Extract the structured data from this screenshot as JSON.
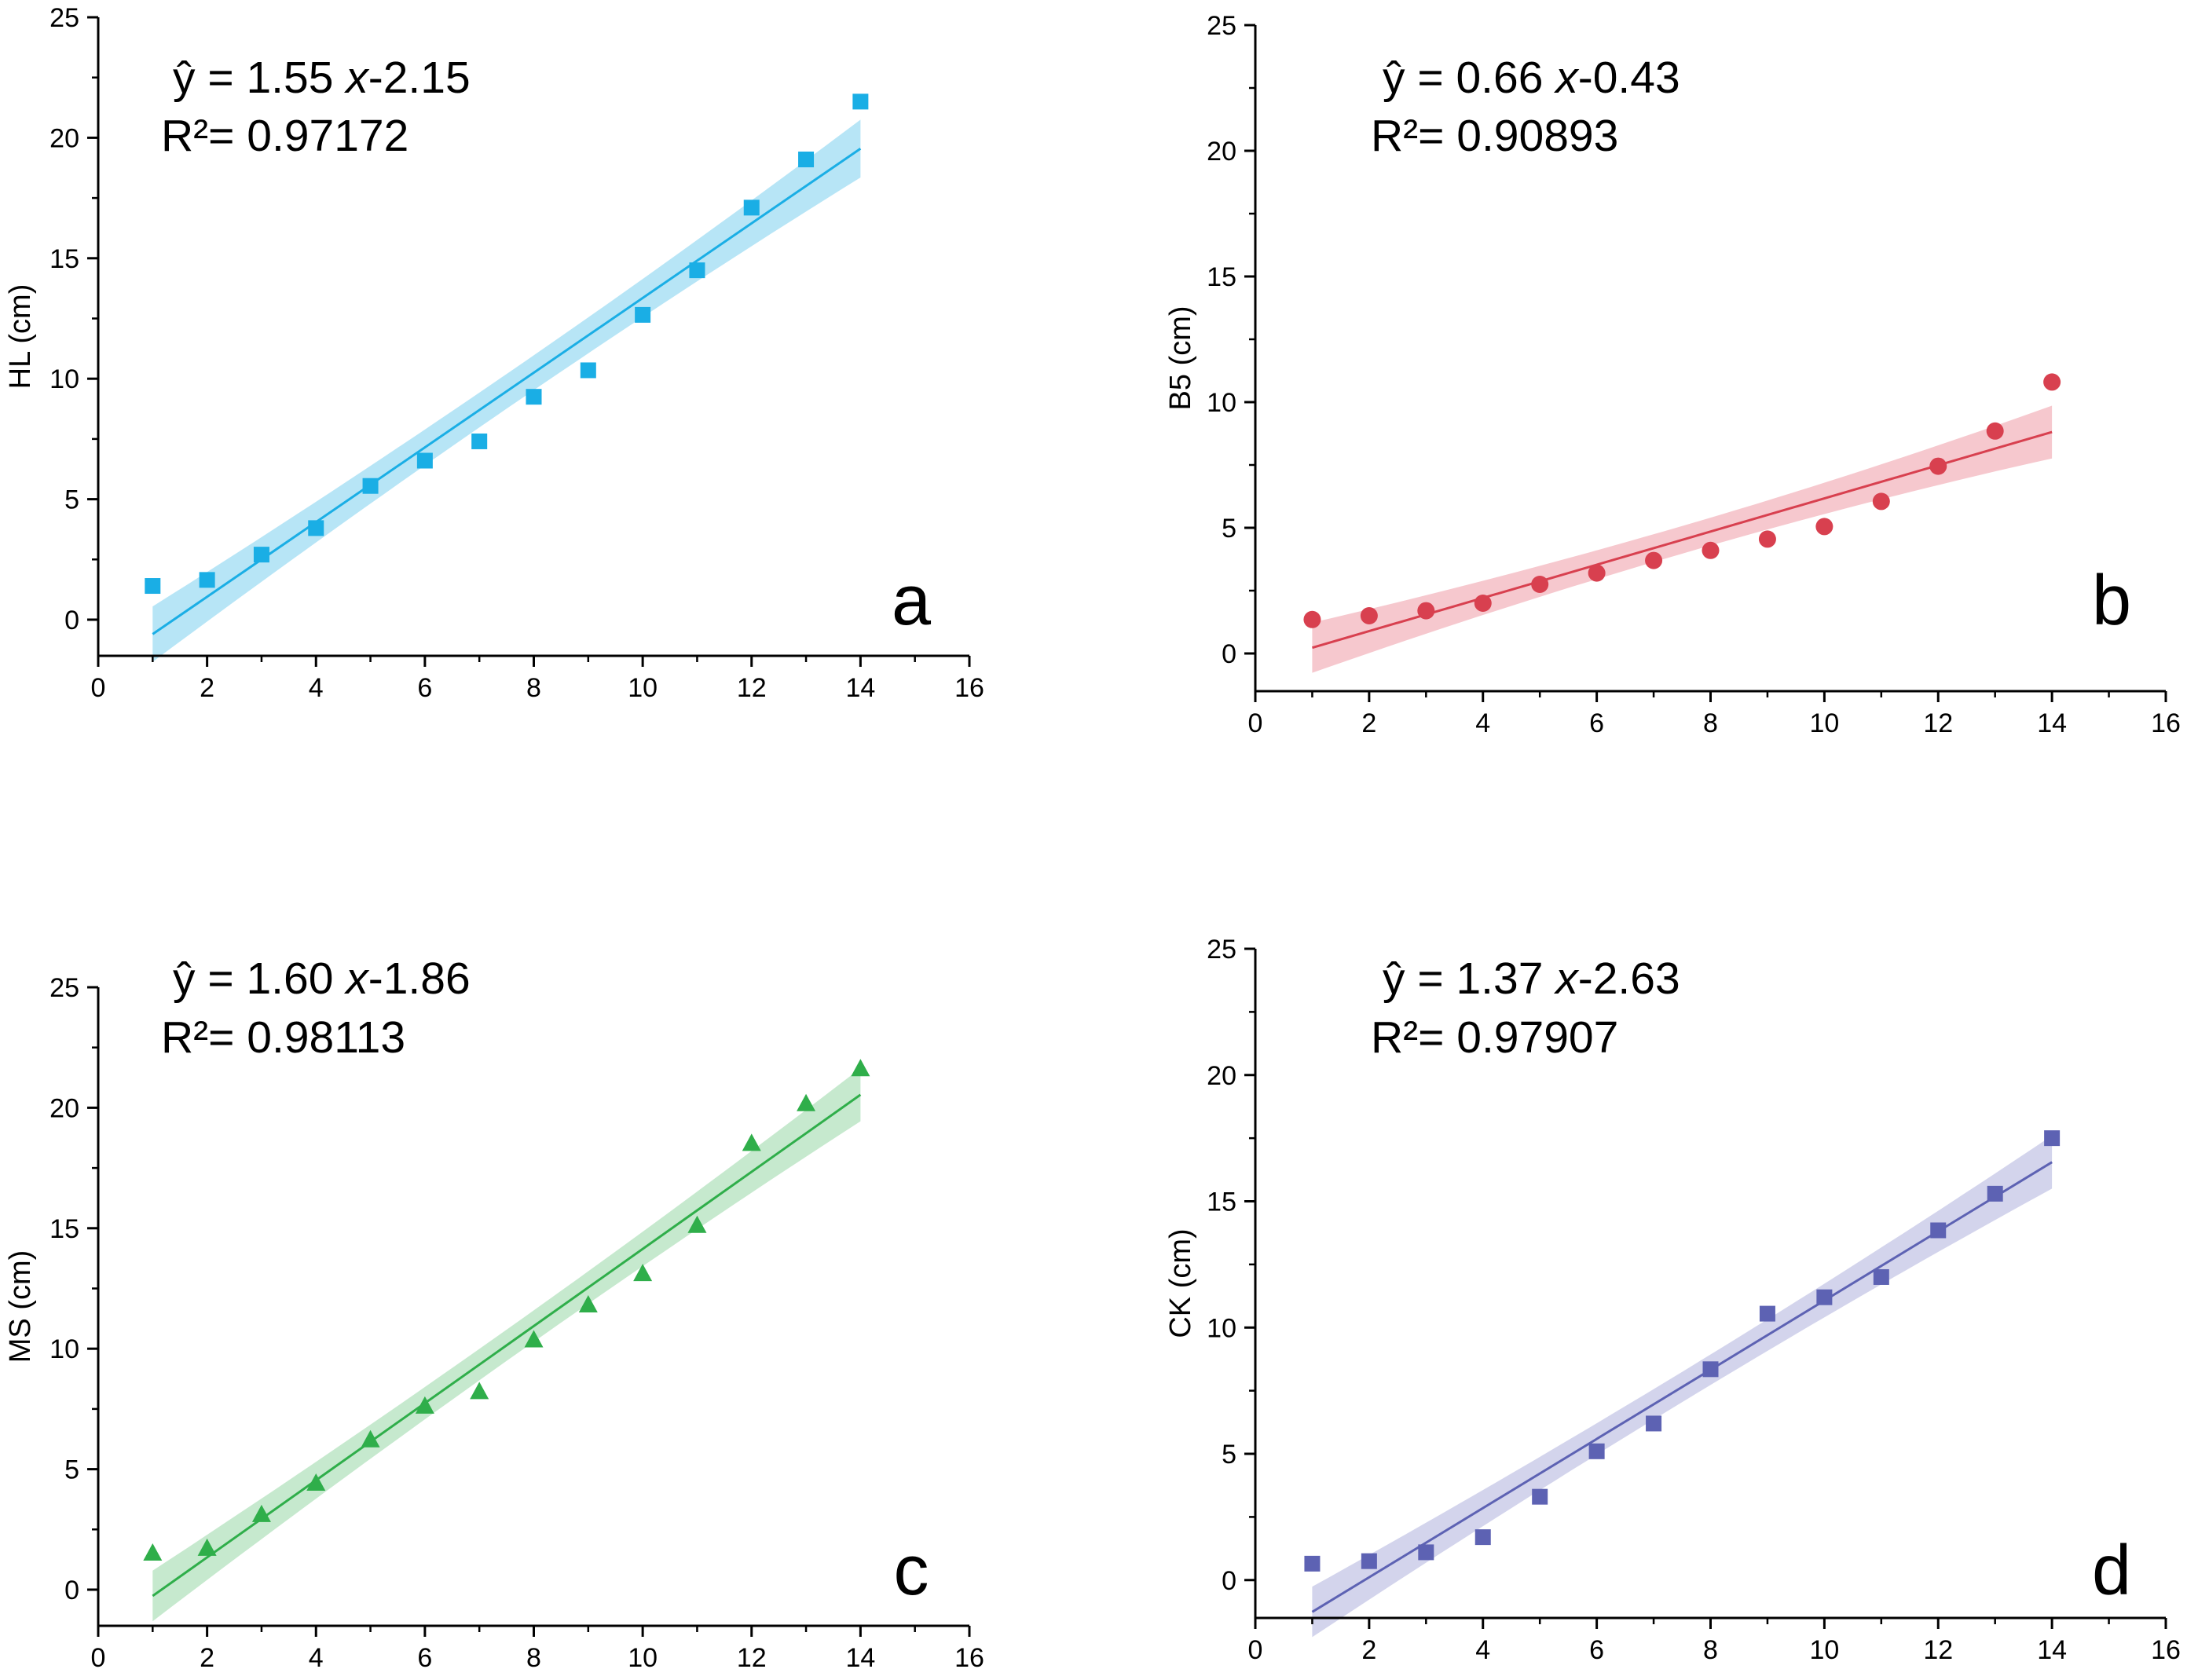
{
  "chart_data": [
    {
      "type": "scatter",
      "panel_label": "a",
      "ylabel": "HL (cm)",
      "xlabel": "",
      "equation": {
        "prefix": "ŷ = 1.55 ",
        "var": "x",
        "suffix": "-2.15"
      },
      "r_squared": "R²= 0.97172",
      "color": "#1aaee5",
      "band_color": "#9fdcf3",
      "marker": "square",
      "xlim": [
        0,
        16
      ],
      "ylim": [
        -1.5,
        25
      ],
      "x_ticks": [
        0,
        2,
        4,
        6,
        8,
        10,
        12,
        14,
        16
      ],
      "y_ticks": [
        0,
        5,
        10,
        15,
        20,
        25
      ],
      "x_tick_labels": [
        "0",
        "2",
        "4",
        "6",
        "8",
        "10",
        "12",
        "14",
        "16"
      ],
      "y_tick_labels": [
        "0",
        "5",
        "10",
        "15",
        "20",
        "25"
      ],
      "x": [
        1,
        2,
        3,
        4,
        5,
        6,
        7,
        8,
        9,
        10,
        11,
        12,
        13,
        14
      ],
      "y": [
        1.4,
        1.65,
        2.7,
        3.8,
        5.55,
        6.6,
        7.4,
        9.25,
        10.35,
        12.65,
        14.5,
        17.1,
        19.1,
        21.5
      ],
      "fit": {
        "slope": 1.55,
        "intercept": -2.15,
        "band": [
          1.15,
          0.72,
          1.2
        ]
      }
    },
    {
      "type": "scatter",
      "panel_label": "b",
      "ylabel": "B5 (cm)",
      "xlabel": "",
      "equation": {
        "prefix": "ŷ = 0.66 ",
        "var": "x",
        "suffix": "-0.43"
      },
      "r_squared": "R²= 0.90893",
      "color": "#d8404f",
      "band_color": "#f3b6bd",
      "marker": "circle",
      "xlim": [
        0,
        16
      ],
      "ylim": [
        -1.5,
        25
      ],
      "x_ticks": [
        0,
        2,
        4,
        6,
        8,
        10,
        12,
        14,
        16
      ],
      "y_ticks": [
        0,
        5,
        10,
        15,
        20,
        25
      ],
      "x_tick_labels": [
        "0",
        "2",
        "4",
        "6",
        "8",
        "10",
        "12",
        "14",
        "16"
      ],
      "y_tick_labels": [
        "0",
        "5",
        "10",
        "15",
        "20",
        "25"
      ],
      "x": [
        1,
        2,
        3,
        4,
        5,
        6,
        7,
        8,
        9,
        10,
        11,
        12,
        13,
        14
      ],
      "y": [
        1.35,
        1.5,
        1.7,
        2.0,
        2.75,
        3.2,
        3.7,
        4.1,
        4.55,
        5.05,
        6.05,
        7.45,
        8.85,
        10.8
      ],
      "fit": {
        "slope": 0.66,
        "intercept": -0.43,
        "band": [
          1.0,
          0.55,
          1.05
        ]
      }
    },
    {
      "type": "scatter",
      "panel_label": "c",
      "ylabel": "MS (cm)",
      "xlabel": "",
      "equation": {
        "prefix": "ŷ = 1.60 ",
        "var": "x",
        "suffix": "-1.86"
      },
      "r_squared": "R²= 0.98113",
      "color": "#2fae4a",
      "band_color": "#b3e1bd",
      "marker": "triangle",
      "xlim": [
        0,
        16
      ],
      "ylim": [
        -1.5,
        25
      ],
      "x_ticks": [
        0,
        2,
        4,
        6,
        8,
        10,
        12,
        14,
        16
      ],
      "y_ticks": [
        0,
        5,
        10,
        15,
        20,
        25
      ],
      "x_tick_labels": [
        "0",
        "2",
        "4",
        "6",
        "8",
        "10",
        "12",
        "14",
        "16"
      ],
      "y_tick_labels": [
        "0",
        "5",
        "10",
        "15",
        "20",
        "25"
      ],
      "x": [
        1,
        2,
        3,
        4,
        5,
        6,
        7,
        8,
        9,
        10,
        11,
        12,
        13,
        14
      ],
      "y": [
        1.5,
        1.7,
        3.1,
        4.4,
        6.2,
        7.6,
        8.2,
        10.35,
        11.8,
        13.1,
        15.1,
        18.5,
        20.15,
        21.6
      ],
      "fit": {
        "slope": 1.6,
        "intercept": -1.86,
        "band": [
          1.05,
          0.65,
          1.1
        ]
      }
    },
    {
      "type": "scatter",
      "panel_label": "d",
      "ylabel": "CK (cm)",
      "xlabel": "",
      "equation": {
        "prefix": "ŷ = 1.37 ",
        "var": "x",
        "suffix": "-2.63"
      },
      "r_squared": "R²= 0.97907",
      "color": "#5d62b3",
      "band_color": "#c4c6e6",
      "marker": "square",
      "xlim": [
        0,
        16
      ],
      "ylim": [
        -1.5,
        25
      ],
      "x_ticks": [
        0,
        2,
        4,
        6,
        8,
        10,
        12,
        14,
        16
      ],
      "y_ticks": [
        0,
        5,
        10,
        15,
        20,
        25
      ],
      "x_tick_labels": [
        "0",
        "2",
        "4",
        "6",
        "8",
        "10",
        "12",
        "14",
        "16"
      ],
      "y_tick_labels": [
        "0",
        "5",
        "10",
        "15",
        "20",
        "25"
      ],
      "x": [
        1,
        2,
        3,
        4,
        5,
        6,
        7,
        8,
        9,
        10,
        11,
        12,
        13,
        14
      ],
      "y": [
        0.65,
        0.75,
        1.1,
        1.7,
        3.3,
        5.1,
        6.2,
        8.35,
        10.55,
        11.2,
        12.0,
        13.85,
        15.3,
        17.5
      ],
      "fit": {
        "slope": 1.37,
        "intercept": -2.63,
        "band": [
          1.0,
          0.6,
          1.05
        ]
      }
    }
  ]
}
